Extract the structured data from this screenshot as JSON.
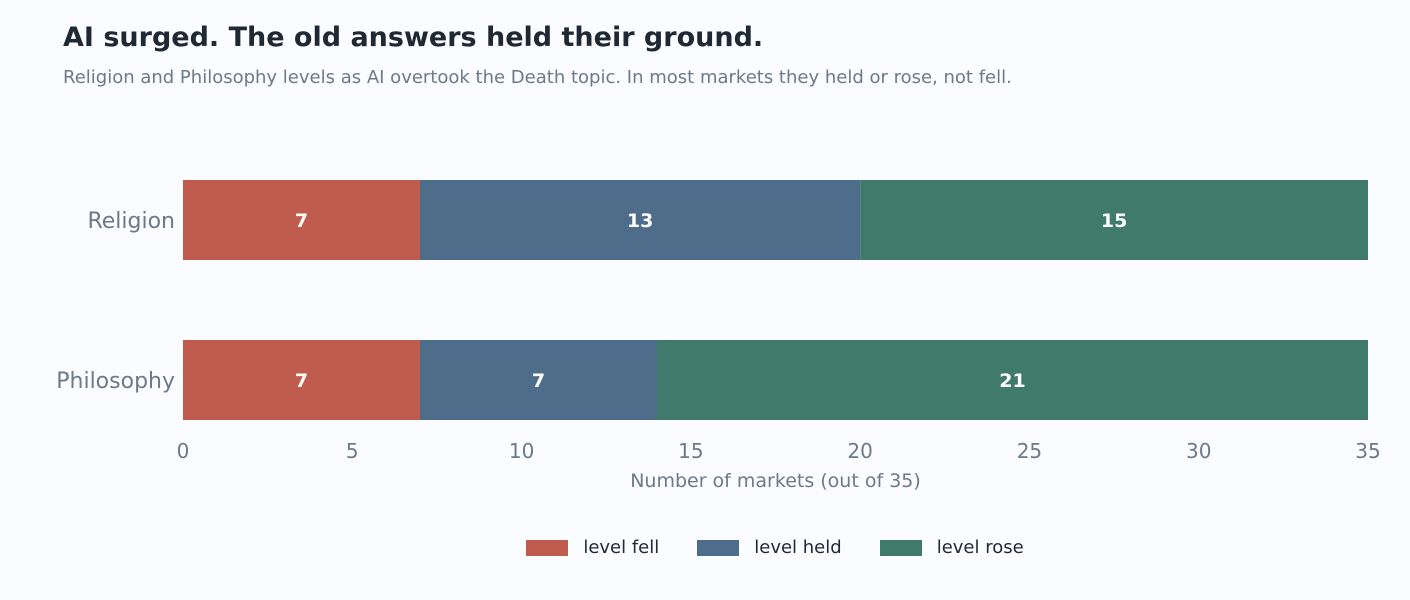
{
  "title": "AI surged. The old answers held their ground.",
  "subtitle": "Religion and Philosophy levels as AI overtook the Death topic. In most markets they held or rose, not fell.",
  "chart_data": {
    "type": "bar",
    "orientation": "horizontal",
    "stacked": true,
    "categories": [
      "Religion",
      "Philosophy"
    ],
    "series": [
      {
        "name": "level fell",
        "values": [
          7,
          7
        ],
        "color": "#c05c4d"
      },
      {
        "name": "level held",
        "values": [
          13,
          7
        ],
        "color": "#4d6d8b"
      },
      {
        "name": "level rose",
        "values": [
          15,
          21
        ],
        "color": "#3f7a6a"
      }
    ],
    "xlabel": "Number of markets (out of 35)",
    "xlim": [
      0,
      35
    ],
    "xticks": [
      0,
      5,
      10,
      15,
      20,
      25,
      30,
      35
    ],
    "grid": false,
    "legend_position": "bottom-center"
  }
}
